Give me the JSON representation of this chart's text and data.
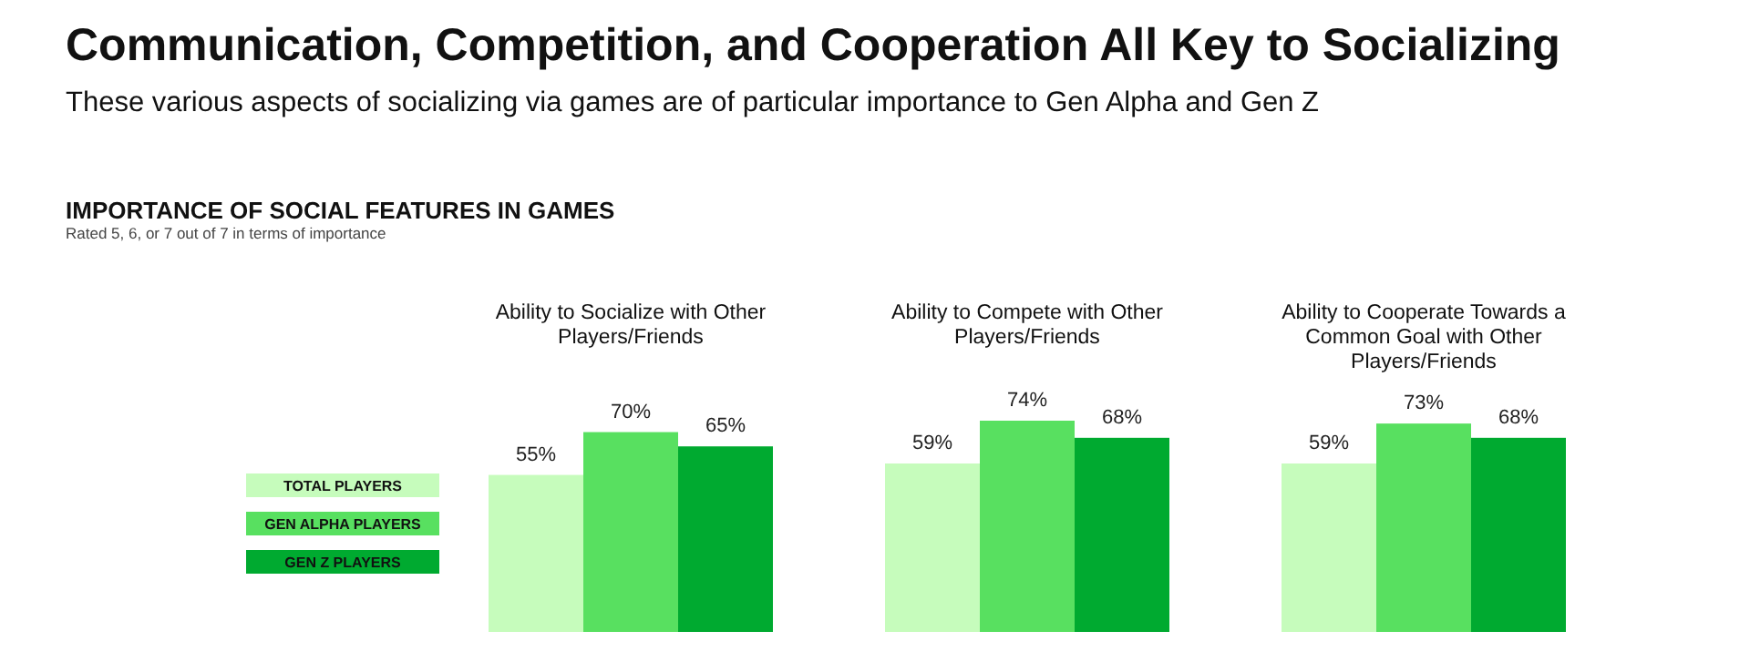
{
  "chart_data": {
    "type": "bar",
    "title": "Communication, Competition, and Cooperation All Key to Socializing",
    "subtitle": "These various aspects of socializing via games are of particular importance to Gen Alpha and Gen Z",
    "annotations": [
      "IMPORTANCE OF SOCIAL FEATURES IN GAMES",
      "Rated 5, 6, or 7 out of 7 in terms of importance"
    ],
    "categories": [
      "Ability to Socialize with Other Players/Friends",
      "Ability to Compete with Other Players/Friends",
      "Ability to Cooperate Towards a Common Goal with Other Players/Friends"
    ],
    "series": [
      {
        "name": "TOTAL PLAYERS",
        "color": "#c6fcbc",
        "values": [
          55,
          59,
          59
        ],
        "value_labels": [
          "55%",
          "59%",
          "59%"
        ]
      },
      {
        "name": "GEN ALPHA PLAYERS",
        "color": "#58e060",
        "values": [
          70,
          74,
          73
        ],
        "value_labels": [
          "70%",
          "74%",
          "73%"
        ]
      },
      {
        "name": "GEN Z PLAYERS",
        "color": "#00aa30",
        "values": [
          65,
          68,
          68
        ],
        "value_labels": [
          "65%",
          "68%",
          "68%"
        ]
      }
    ],
    "legend": "left"
  }
}
